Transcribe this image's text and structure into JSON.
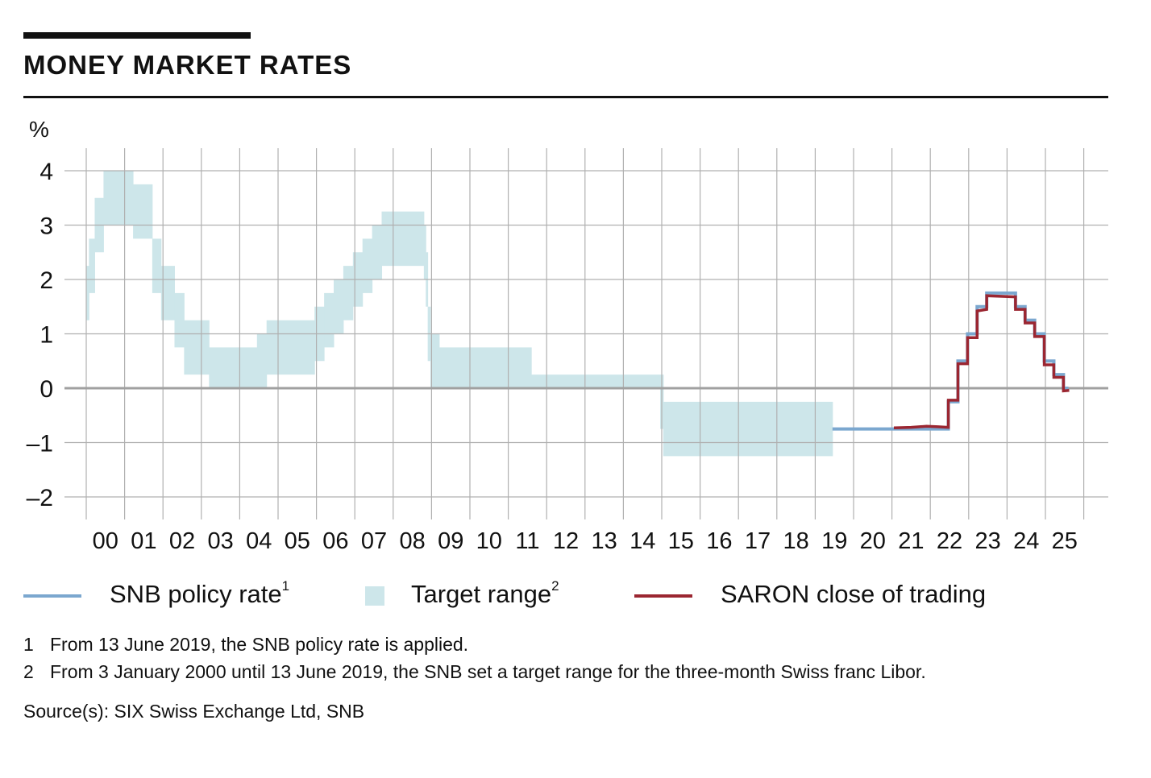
{
  "title": "MONEY MARKET RATES",
  "colors": {
    "policy": "#7ba7cf",
    "target": "#cde6ea",
    "saron": "#9b2631",
    "grid": "#b0b0b0",
    "zero": "#a0a0a0"
  },
  "legend": [
    {
      "label": "SNB policy rate",
      "sup": "1"
    },
    {
      "label": "Target range",
      "sup": "2"
    },
    {
      "label": "SARON close of trading",
      "sup": ""
    }
  ],
  "footnotes": [
    {
      "num": "1",
      "text": "From 13 June 2019, the SNB policy rate is applied."
    },
    {
      "num": "2",
      "text": "From 3 January 2000 until 13 June 2019, the SNB set a target range for the three-month Swiss franc Libor."
    }
  ],
  "source": "Source(s): SIX Swiss Exchange Ltd, SNB",
  "chart_data": {
    "type": "line",
    "ylabel": "%",
    "ylim": [
      -2.4,
      4.4
    ],
    "yticks": [
      4,
      3,
      2,
      1,
      0,
      -1,
      -2
    ],
    "ytick_labels": [
      "4",
      "3",
      "2",
      "1",
      "0",
      "–1",
      "–2"
    ],
    "xlim": [
      2000,
      2026
    ],
    "xtick_labels": [
      "00",
      "01",
      "02",
      "03",
      "04",
      "05",
      "06",
      "07",
      "08",
      "09",
      "10",
      "11",
      "12",
      "13",
      "14",
      "15",
      "16",
      "17",
      "18",
      "19",
      "20",
      "21",
      "22",
      "23",
      "24",
      "25"
    ],
    "grid": true,
    "legend_position": "bottom",
    "target_range": [
      [
        2000.0,
        1.25,
        2.25
      ],
      [
        2000.07,
        1.75,
        2.75
      ],
      [
        2000.22,
        2.5,
        3.5
      ],
      [
        2000.45,
        3.0,
        4.0
      ],
      [
        2001.22,
        2.75,
        3.75
      ],
      [
        2001.72,
        1.75,
        2.75
      ],
      [
        2001.95,
        1.25,
        2.25
      ],
      [
        2002.3,
        0.75,
        1.75
      ],
      [
        2002.55,
        0.25,
        1.25
      ],
      [
        2003.2,
        0.0,
        0.75
      ],
      [
        2004.45,
        0.0,
        1.0
      ],
      [
        2004.7,
        0.25,
        1.25
      ],
      [
        2005.95,
        0.5,
        1.5
      ],
      [
        2006.2,
        0.75,
        1.75
      ],
      [
        2006.45,
        1.0,
        2.0
      ],
      [
        2006.7,
        1.25,
        2.25
      ],
      [
        2006.95,
        1.5,
        2.5
      ],
      [
        2007.2,
        1.75,
        2.75
      ],
      [
        2007.45,
        2.0,
        3.0
      ],
      [
        2007.7,
        2.25,
        3.25
      ],
      [
        2008.8,
        2.0,
        3.0
      ],
      [
        2008.85,
        1.5,
        2.5
      ],
      [
        2008.9,
        0.5,
        1.5
      ],
      [
        2008.97,
        0.0,
        1.0
      ],
      [
        2009.2,
        0.0,
        0.75
      ],
      [
        2011.6,
        0.0,
        0.25
      ],
      [
        2014.96,
        -0.75,
        0.25
      ],
      [
        2015.04,
        -1.25,
        -0.25
      ],
      [
        2019.45,
        null,
        null
      ]
    ],
    "series": [
      {
        "name": "SNB policy rate",
        "points": [
          [
            2019.45,
            -0.75
          ],
          [
            2022.47,
            -0.75
          ],
          [
            2022.47,
            -0.25
          ],
          [
            2022.72,
            -0.25
          ],
          [
            2022.72,
            0.5
          ],
          [
            2022.97,
            0.5
          ],
          [
            2022.97,
            1.0
          ],
          [
            2023.22,
            1.0
          ],
          [
            2023.22,
            1.5
          ],
          [
            2023.47,
            1.5
          ],
          [
            2023.47,
            1.75
          ],
          [
            2024.22,
            1.75
          ],
          [
            2024.22,
            1.5
          ],
          [
            2024.47,
            1.5
          ],
          [
            2024.47,
            1.25
          ],
          [
            2024.72,
            1.25
          ],
          [
            2024.72,
            1.0
          ],
          [
            2024.97,
            1.0
          ],
          [
            2024.97,
            0.5
          ],
          [
            2025.22,
            0.5
          ],
          [
            2025.22,
            0.25
          ],
          [
            2025.47,
            0.25
          ],
          [
            2025.47,
            0.0
          ],
          [
            2025.6,
            0.0
          ]
        ]
      },
      {
        "name": "SARON close of trading",
        "points": [
          [
            2021.05,
            -0.73
          ],
          [
            2021.5,
            -0.72
          ],
          [
            2021.9,
            -0.7
          ],
          [
            2022.2,
            -0.71
          ],
          [
            2022.47,
            -0.72
          ],
          [
            2022.47,
            -0.22
          ],
          [
            2022.72,
            -0.22
          ],
          [
            2022.72,
            0.45
          ],
          [
            2022.97,
            0.45
          ],
          [
            2022.97,
            0.93
          ],
          [
            2023.22,
            0.93
          ],
          [
            2023.22,
            1.42
          ],
          [
            2023.47,
            1.45
          ],
          [
            2023.47,
            1.7
          ],
          [
            2024.22,
            1.68
          ],
          [
            2024.22,
            1.45
          ],
          [
            2024.47,
            1.45
          ],
          [
            2024.47,
            1.2
          ],
          [
            2024.72,
            1.2
          ],
          [
            2024.72,
            0.95
          ],
          [
            2024.97,
            0.95
          ],
          [
            2024.97,
            0.43
          ],
          [
            2025.22,
            0.43
          ],
          [
            2025.22,
            0.2
          ],
          [
            2025.47,
            0.2
          ],
          [
            2025.47,
            -0.05
          ],
          [
            2025.62,
            -0.04
          ]
        ]
      }
    ]
  }
}
